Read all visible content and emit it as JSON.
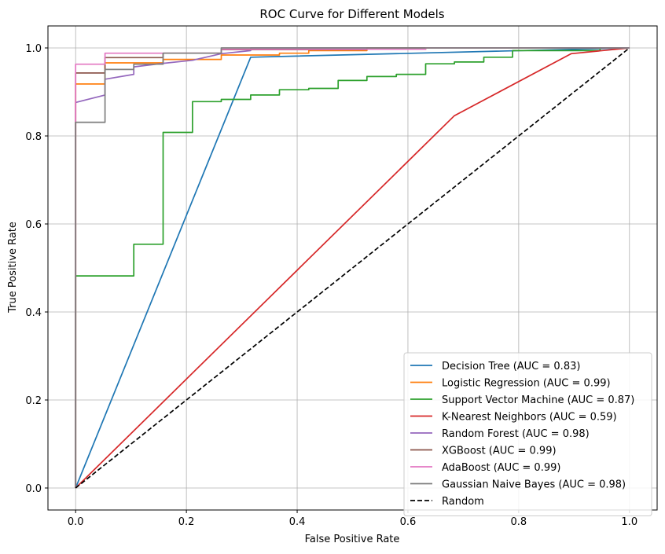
{
  "chart_data": {
    "type": "line",
    "title": "ROC Curve for Different Models",
    "xlabel": "False Positive Rate",
    "ylabel": "True Positive Rate",
    "xlim": [
      -0.05,
      1.05
    ],
    "ylim": [
      -0.05,
      1.05
    ],
    "xticks": [
      "0.0",
      "0.2",
      "0.4",
      "0.6",
      "0.8",
      "1.0"
    ],
    "yticks": [
      "0.0",
      "0.2",
      "0.4",
      "0.6",
      "0.8",
      "1.0"
    ],
    "grid": true,
    "legend_position": "lower-right",
    "series": [
      {
        "name": "Decision Tree (AUC = 0.83)",
        "color": "#1f77b4",
        "style": "solid",
        "x": [
          0,
          0.316,
          1.0
        ],
        "y": [
          0,
          0.979,
          1.0
        ]
      },
      {
        "name": "Logistic Regression (AUC = 0.99)",
        "color": "#ff7f0e",
        "style": "solid",
        "x": [
          0,
          0,
          0,
          0.053,
          0.053,
          0.158,
          0.158,
          0.263,
          0.263,
          0.368,
          0.368,
          0.421,
          0.421,
          0.526,
          0.526,
          0.632,
          0.632,
          1.0
        ],
        "y": [
          0,
          0.9,
          0.918,
          0.918,
          0.966,
          0.966,
          0.974,
          0.974,
          0.984,
          0.984,
          0.988,
          0.988,
          0.994,
          0.994,
          0.997,
          0.997,
          1.0,
          1.0
        ]
      },
      {
        "name": "Support Vector Machine (AUC = 0.87)",
        "color": "#2ca02c",
        "style": "solid",
        "x": [
          0,
          0,
          0.105,
          0.105,
          0.158,
          0.158,
          0.211,
          0.211,
          0.263,
          0.263,
          0.316,
          0.316,
          0.368,
          0.368,
          0.421,
          0.421,
          0.474,
          0.474,
          0.526,
          0.526,
          0.579,
          0.579,
          0.632,
          0.632,
          0.684,
          0.684,
          0.737,
          0.737,
          0.789,
          0.789,
          0.947,
          0.947,
          1.0
        ],
        "y": [
          0,
          0.482,
          0.482,
          0.554,
          0.554,
          0.808,
          0.808,
          0.878,
          0.878,
          0.883,
          0.883,
          0.893,
          0.893,
          0.905,
          0.905,
          0.908,
          0.908,
          0.926,
          0.926,
          0.935,
          0.935,
          0.94,
          0.94,
          0.964,
          0.964,
          0.968,
          0.968,
          0.979,
          0.979,
          0.994,
          0.994,
          1.0,
          1.0
        ]
      },
      {
        "name": "K-Nearest Neighbors (AUC = 0.59)",
        "color": "#d62728",
        "style": "solid",
        "x": [
          0,
          0.684,
          0.895,
          1.0
        ],
        "y": [
          0,
          0.846,
          0.987,
          1.0
        ]
      },
      {
        "name": "Random Forest (AUC = 0.98)",
        "color": "#9467bd",
        "style": "solid",
        "x": [
          0,
          0,
          0.053,
          0.053,
          0.105,
          0.105,
          0.158,
          0.158,
          0.211,
          0.211,
          0.263,
          0.263,
          0.316,
          0.316,
          1.0
        ],
        "y": [
          0,
          0.876,
          0.893,
          0.929,
          0.94,
          0.957,
          0.965,
          0.965,
          0.972,
          0.972,
          0.987,
          0.987,
          0.994,
          1.0,
          1.0
        ]
      },
      {
        "name": "XGBoost (AUC = 0.99)",
        "color": "#8c564b",
        "style": "solid",
        "x": [
          0,
          0,
          0.053,
          0.053,
          0.158,
          0.158,
          0.263,
          0.263,
          0.526,
          0.526,
          1.0
        ],
        "y": [
          0,
          0.943,
          0.943,
          0.978,
          0.978,
          0.988,
          0.988,
          0.996,
          0.996,
          1.0,
          1.0
        ]
      },
      {
        "name": "AdaBoost (AUC = 0.99)",
        "color": "#e377c2",
        "style": "solid",
        "x": [
          0,
          0,
          0.053,
          0.053,
          0.263,
          0.263,
          0.632,
          0.632,
          1.0
        ],
        "y": [
          0,
          0.963,
          0.963,
          0.988,
          0.988,
          0.997,
          0.997,
          1.0,
          1.0
        ]
      },
      {
        "name": "Gaussian Naive Bayes (AUC = 0.98)",
        "color": "#7f7f7f",
        "style": "solid",
        "x": [
          0,
          0,
          0.053,
          0.053,
          0.105,
          0.105,
          0.158,
          0.158,
          0.263,
          0.263,
          1.0
        ],
        "y": [
          0,
          0.831,
          0.831,
          0.951,
          0.951,
          0.963,
          0.963,
          0.988,
          0.988,
          1.0,
          1.0
        ]
      },
      {
        "name": "Random",
        "color": "#000000",
        "style": "dashed",
        "x": [
          0,
          1
        ],
        "y": [
          0,
          1
        ]
      }
    ]
  }
}
